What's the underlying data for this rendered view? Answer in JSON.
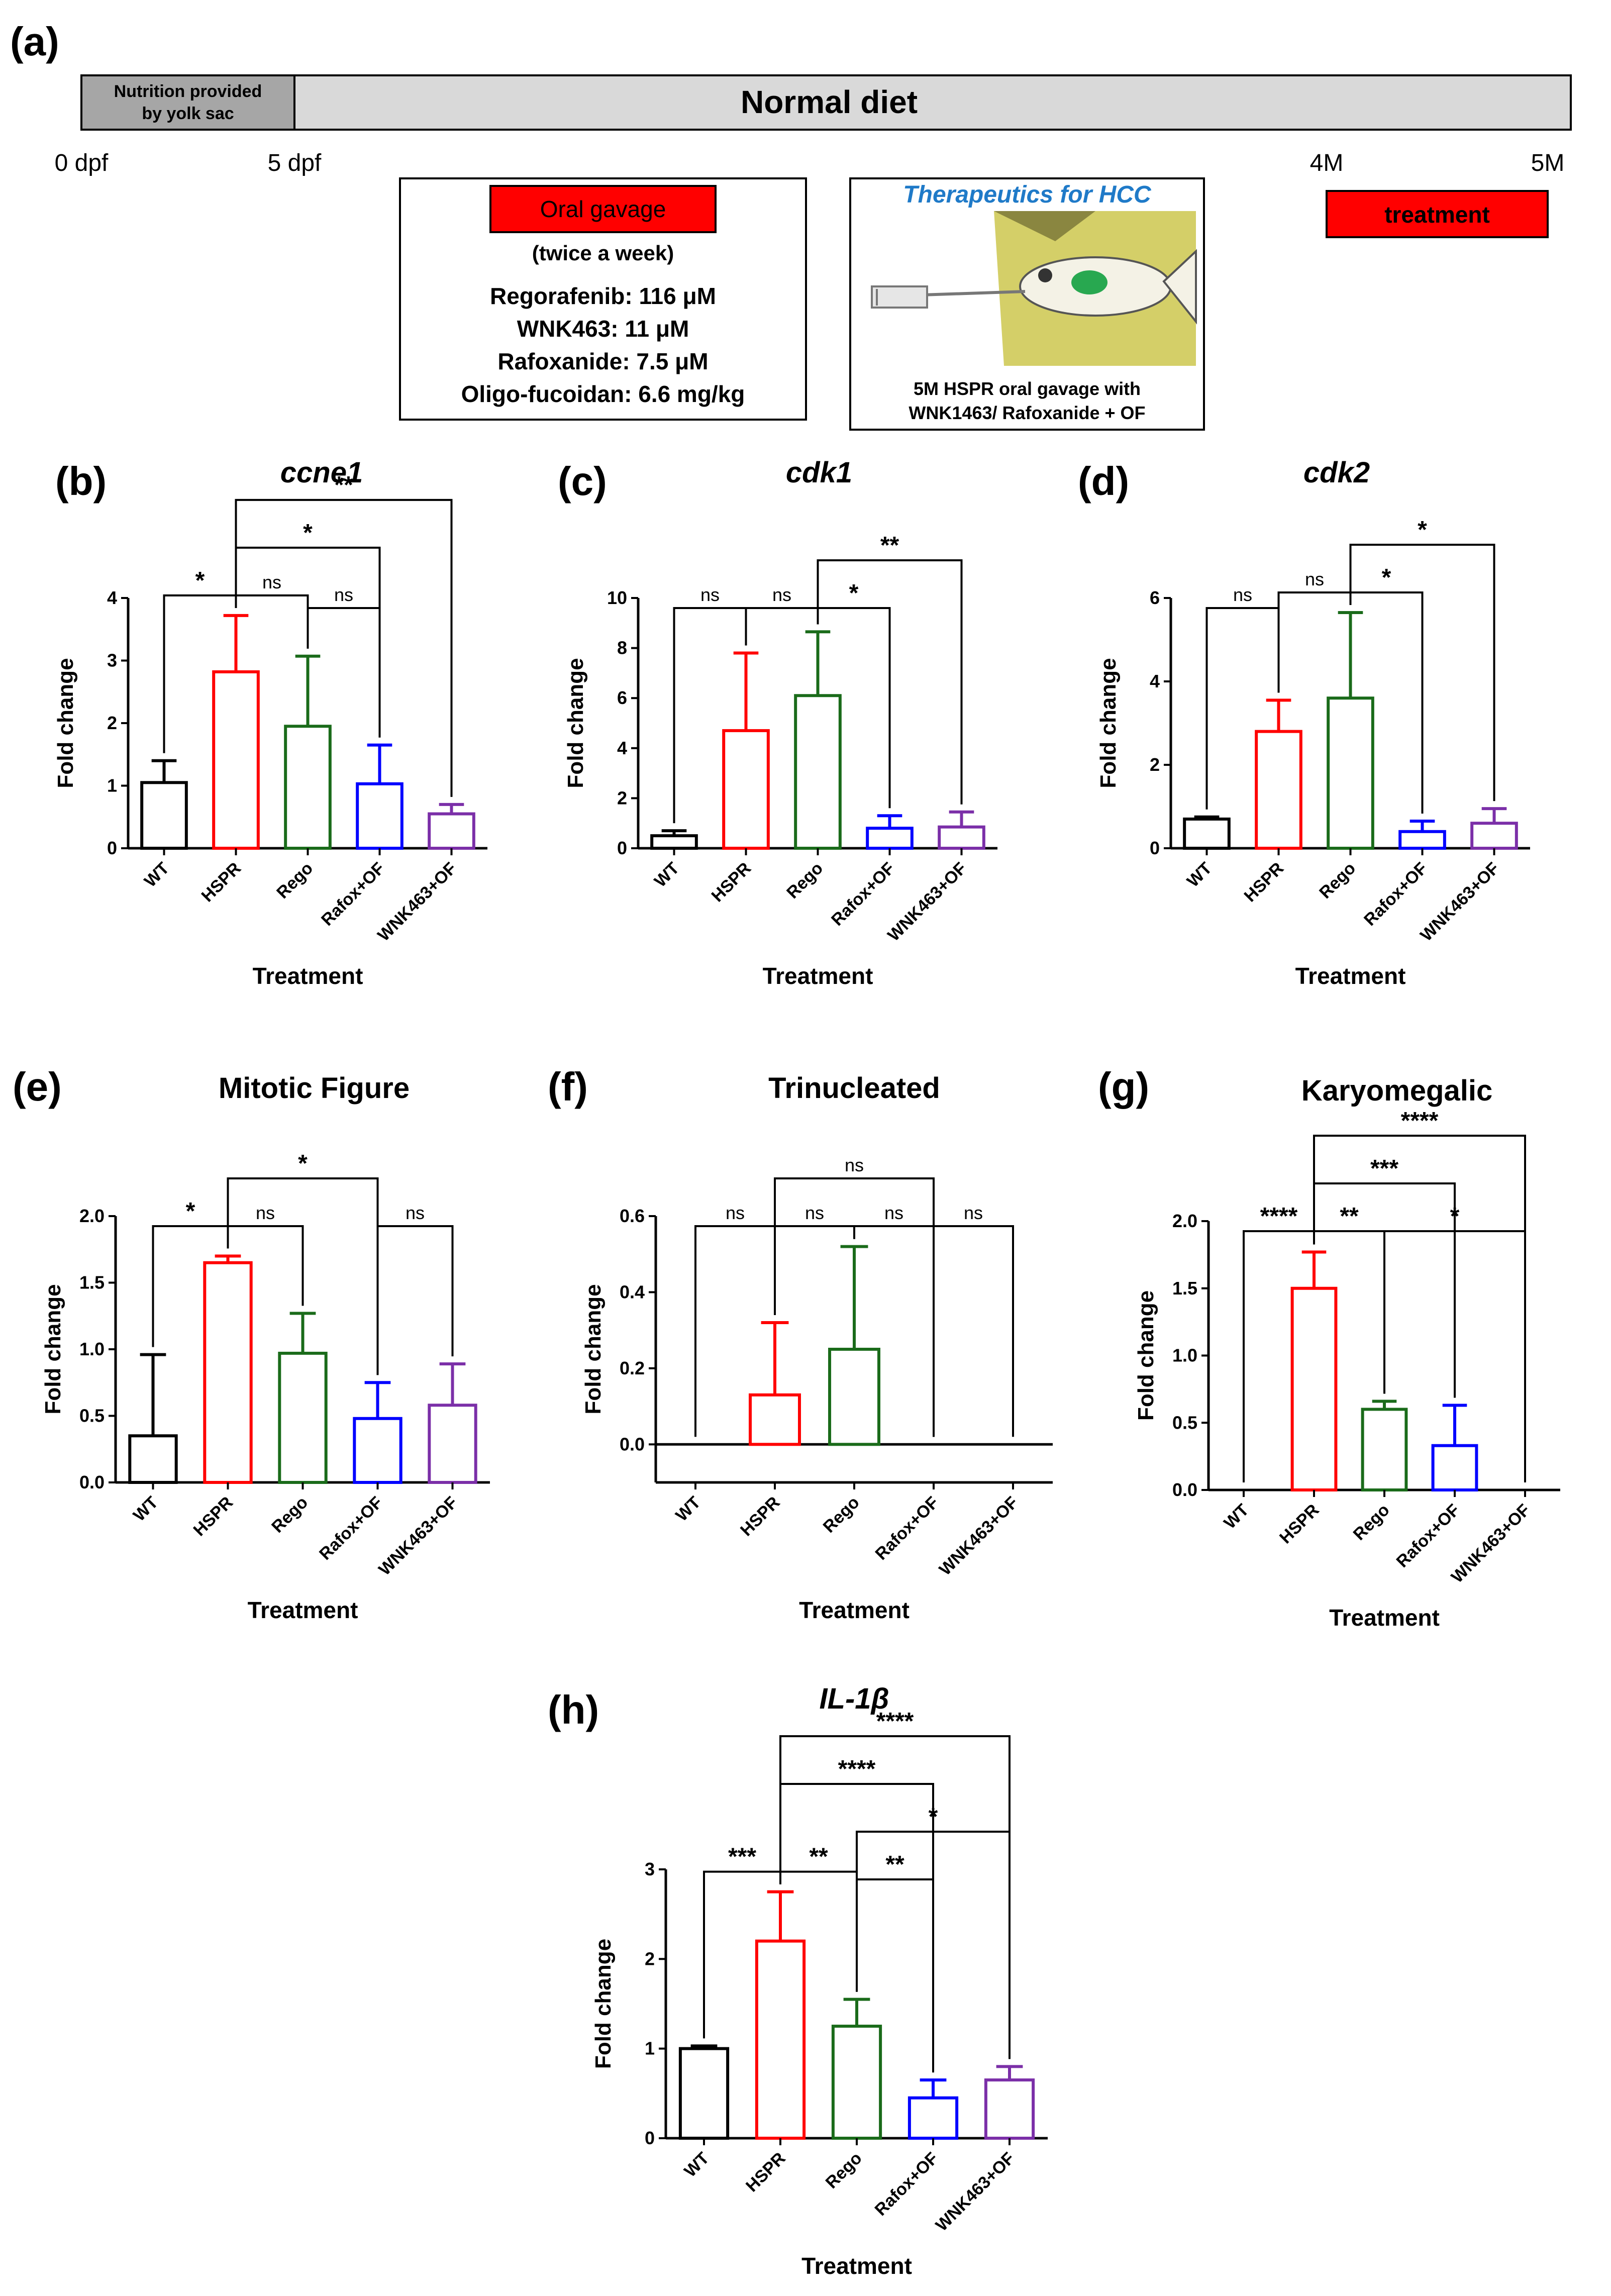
{
  "timeline": {
    "panel_label": "(a)",
    "yolk_label_line1": "Nutrition provided",
    "yolk_label_line2": "by yolk sac",
    "diet_label": "Normal diet",
    "ticks": [
      "0 dpf",
      "5 dpf",
      "4M",
      "5M"
    ],
    "treatment_label": "treatment",
    "treatment_color": "#ff0000"
  },
  "gavage_box": {
    "title": "Oral gavage",
    "frequency": "(twice a week)",
    "doses": [
      "Regorafenib: 116 μM",
      "WNK463: 11 μM",
      "Rafoxanide: 7.5 μM",
      "Oligo-fucoidan: 6.6 mg/kg"
    ]
  },
  "therapeutics_box": {
    "title": "Therapeutics for HCC",
    "caption_line1": "5M HSPR oral gavage with",
    "caption_line2": "WNK1463/ Rafoxanide + OF",
    "fish_illustration_icon": "zebrafish-gavage-icon"
  },
  "series_colors": {
    "WT": "#000000",
    "HSPR": "#ff0000",
    "Rego": "#1a6b1a",
    "Rafox+OF": "#0000ff",
    "WNK463+OF": "#7b2fa8"
  },
  "chart_data": [
    {
      "panel": "(b)",
      "title": "ccne1",
      "italic": true,
      "type": "bar",
      "categories": [
        "WT",
        "HSPR",
        "Rego",
        "Rafox+OF",
        "WNK463+OF"
      ],
      "values": [
        1.05,
        2.82,
        1.95,
        1.03,
        0.55
      ],
      "errors": [
        0.35,
        0.9,
        1.12,
        0.62,
        0.15
      ],
      "ylim": [
        0,
        4
      ],
      "yticks": [
        "0",
        "1",
        "2",
        "3",
        "4"
      ],
      "xlabel": "Treatment",
      "ylabel": "Fold change",
      "annotations": [
        {
          "from": "WT",
          "to": "HSPR",
          "label": "*"
        },
        {
          "from": "HSPR",
          "to": "Rego",
          "label": "ns"
        },
        {
          "from": "Rego",
          "to": "Rafox+OF",
          "label": "ns"
        },
        {
          "from": "HSPR",
          "to": "Rafox+OF",
          "label": "*"
        },
        {
          "from": "HSPR",
          "to": "WNK463+OF",
          "label": "**"
        }
      ]
    },
    {
      "panel": "(c)",
      "title": "cdk1",
      "italic": true,
      "type": "bar",
      "categories": [
        "WT",
        "HSPR",
        "Rego",
        "Rafox+OF",
        "WNK463+OF"
      ],
      "values": [
        0.5,
        4.7,
        6.1,
        0.8,
        0.85
      ],
      "errors": [
        0.2,
        3.1,
        2.55,
        0.5,
        0.6
      ],
      "ylim": [
        0,
        10
      ],
      "yticks": [
        "0",
        "2",
        "4",
        "6",
        "8",
        "10"
      ],
      "xlabel": "Treatment",
      "ylabel": "Fold change",
      "annotations": [
        {
          "from": "WT",
          "to": "HSPR",
          "label": "ns"
        },
        {
          "from": "HSPR",
          "to": "Rego",
          "label": "ns"
        },
        {
          "from": "Rego",
          "to": "Rafox+OF",
          "label": "*"
        },
        {
          "from": "Rego",
          "to": "WNK463+OF",
          "label": "**"
        }
      ]
    },
    {
      "panel": "(d)",
      "title": "cdk2",
      "italic": true,
      "type": "bar",
      "categories": [
        "WT",
        "HSPR",
        "Rego",
        "Rafox+OF",
        "WNK463+OF"
      ],
      "values": [
        0.7,
        2.8,
        3.6,
        0.4,
        0.6
      ],
      "errors": [
        0.05,
        0.75,
        2.05,
        0.25,
        0.35
      ],
      "ylim": [
        0,
        6
      ],
      "yticks": [
        "0",
        "2",
        "4",
        "6"
      ],
      "xlabel": "Treatment",
      "ylabel": "Fold change",
      "annotations": [
        {
          "from": "WT",
          "to": "HSPR",
          "label": "ns"
        },
        {
          "from": "HSPR",
          "to": "Rego",
          "label": "ns"
        },
        {
          "from": "Rego",
          "to": "Rafox+OF",
          "label": "*"
        },
        {
          "from": "Rego",
          "to": "WNK463+OF",
          "label": "*"
        }
      ]
    },
    {
      "panel": "(e)",
      "title": "Mitotic Figure",
      "italic": false,
      "type": "bar",
      "categories": [
        "WT",
        "HSPR",
        "Rego",
        "Rafox+OF",
        "WNK463+OF"
      ],
      "values": [
        0.35,
        1.65,
        0.97,
        0.48,
        0.58
      ],
      "errors": [
        0.61,
        0.05,
        0.3,
        0.27,
        0.31
      ],
      "ylim": [
        0,
        2
      ],
      "yticks": [
        "0.0",
        "0.5",
        "1.0",
        "1.5",
        "2.0"
      ],
      "xlabel": "Treatment",
      "ylabel": "Fold change",
      "annotations": [
        {
          "from": "WT",
          "to": "HSPR",
          "label": "*"
        },
        {
          "from": "HSPR",
          "to": "Rego",
          "label": "ns"
        },
        {
          "from": "HSPR",
          "to": "Rafox+OF",
          "label": "*"
        },
        {
          "from": "Rafox+OF",
          "to": "WNK463+OF",
          "label": "ns"
        }
      ]
    },
    {
      "panel": "(f)",
      "title": "Trinucleated",
      "italic": false,
      "type": "bar",
      "categories": [
        "WT",
        "HSPR",
        "Rego",
        "Rafox+OF",
        "WNK463+OF"
      ],
      "values": [
        0,
        0.13,
        0.25,
        0,
        0
      ],
      "errors": [
        0,
        0.19,
        0.27,
        0,
        0
      ],
      "ylim": [
        -0.1,
        0.6
      ],
      "yticks": [
        "0.0",
        "0.2",
        "0.4",
        "0.6"
      ],
      "ytick_values": [
        0,
        0.2,
        0.4,
        0.6
      ],
      "xlabel": "Treatment",
      "ylabel": "Fold change",
      "annotations": [
        {
          "from": "WT",
          "to": "HSPR",
          "label": "ns"
        },
        {
          "from": "HSPR",
          "to": "Rego",
          "label": "ns"
        },
        {
          "from": "Rego",
          "to": "Rafox+OF",
          "label": "ns"
        },
        {
          "from": "Rafox+OF",
          "to": "WNK463+OF",
          "label": "ns"
        },
        {
          "from": "HSPR",
          "to": "Rafox+OF",
          "label": "ns"
        }
      ]
    },
    {
      "panel": "(g)",
      "title": "Karyomegalic",
      "italic": false,
      "type": "bar",
      "categories": [
        "WT",
        "HSPR",
        "Rego",
        "Rafox+OF",
        "WNK463+OF"
      ],
      "values": [
        0,
        1.5,
        0.6,
        0.33,
        0
      ],
      "errors": [
        0,
        0.27,
        0.06,
        0.3,
        0
      ],
      "ylim": [
        0,
        2
      ],
      "yticks": [
        "0.0",
        "0.5",
        "1.0",
        "1.5",
        "2.0"
      ],
      "xlabel": "Treatment",
      "ylabel": "Fold change",
      "annotations": [
        {
          "from": "WT",
          "to": "HSPR",
          "label": "****"
        },
        {
          "from": "HSPR",
          "to": "Rego",
          "label": "**"
        },
        {
          "from": "Rego",
          "to": "WNK463+OF",
          "label": "*"
        },
        {
          "from": "HSPR",
          "to": "Rafox+OF",
          "label": "***"
        },
        {
          "from": "HSPR",
          "to": "WNK463+OF",
          "label": "****"
        }
      ]
    },
    {
      "panel": "(h)",
      "title": "IL-1β",
      "italic": true,
      "type": "bar",
      "categories": [
        "WT",
        "HSPR",
        "Rego",
        "Rafox+OF",
        "WNK463+OF"
      ],
      "values": [
        1.0,
        2.2,
        1.25,
        0.45,
        0.65
      ],
      "errors": [
        0.03,
        0.55,
        0.3,
        0.2,
        0.15
      ],
      "ylim": [
        0,
        3
      ],
      "yticks": [
        "0",
        "1",
        "2",
        "3"
      ],
      "xlabel": "Treatment",
      "ylabel": "Fold change",
      "annotations": [
        {
          "from": "WT",
          "to": "HSPR",
          "label": "***"
        },
        {
          "from": "HSPR",
          "to": "Rego",
          "label": "**"
        },
        {
          "from": "Rego",
          "to": "Rafox+OF",
          "label": "**"
        },
        {
          "from": "Rego",
          "to": "WNK463+OF",
          "label": "*"
        },
        {
          "from": "HSPR",
          "to": "Rafox+OF",
          "label": "****"
        },
        {
          "from": "HSPR",
          "to": "WNK463+OF",
          "label": "****"
        }
      ]
    }
  ]
}
